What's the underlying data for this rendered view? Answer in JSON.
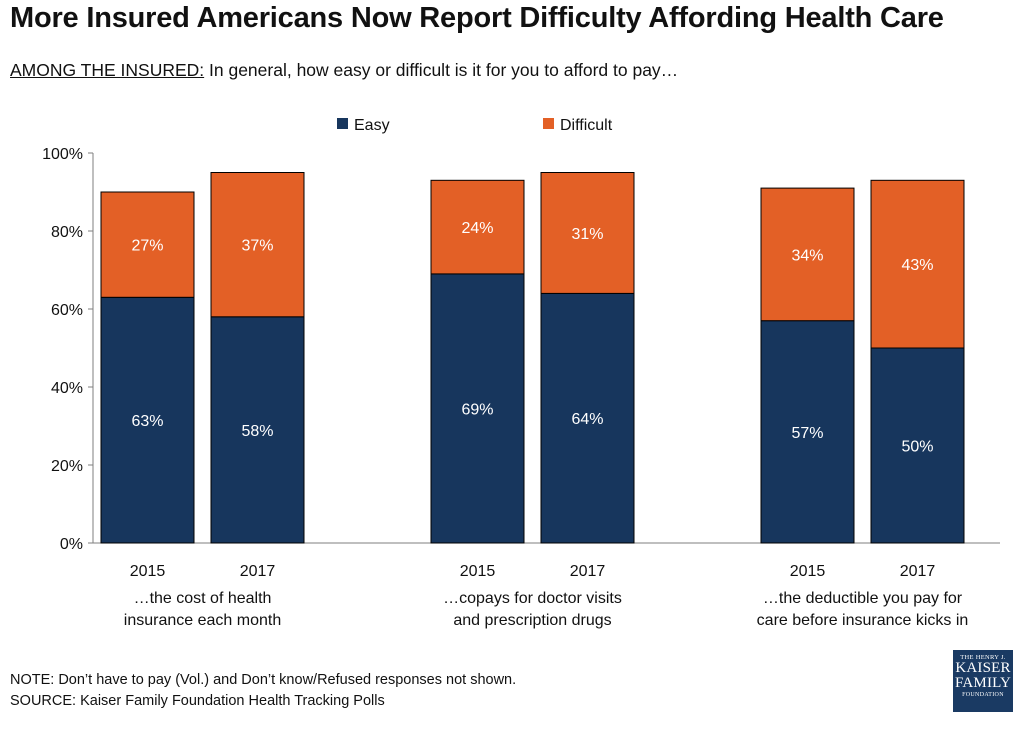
{
  "title": "More Insured Americans Now Report Difficulty Affording Health Care",
  "subtitle": {
    "lead": "AMONG THE INSURED:",
    "text": " In general, how easy or difficult is it for you to afford to pay…"
  },
  "note": "NOTE: Don’t have to pay (Vol.) and Don’t know/Refused  responses not shown.",
  "source": "SOURCE: Kaiser Family Foundation  Health Tracking Polls",
  "logo": {
    "line1": "THE HENRY J.",
    "line2": "KAISER",
    "line3": "FAMILY",
    "line4": "FOUNDATION"
  },
  "colors": {
    "easy": "#17365d",
    "difficult": "#e36026",
    "axis": "#7f7f7f"
  },
  "chart_data": {
    "type": "bar",
    "stacked": true,
    "title": "",
    "xlabel": "",
    "ylabel": "",
    "ylim": [
      0,
      100
    ],
    "yticks": [
      "0%",
      "20%",
      "40%",
      "60%",
      "80%",
      "100%"
    ],
    "legend_position": "top",
    "groups": [
      {
        "label_lines": [
          "…the cost of health",
          "insurance each month"
        ],
        "categories": [
          "2015",
          "2017"
        ]
      },
      {
        "label_lines": [
          "…copays for doctor visits",
          "and prescription drugs"
        ],
        "categories": [
          "2015",
          "2017"
        ]
      },
      {
        "label_lines": [
          "…the deductible you pay for",
          "care before insurance kicks in"
        ],
        "categories": [
          "2015",
          "2017"
        ]
      }
    ],
    "series": [
      {
        "name": "Easy",
        "values": [
          [
            63,
            58
          ],
          [
            69,
            64
          ],
          [
            57,
            50
          ]
        ],
        "labels": [
          [
            "63%",
            "58%"
          ],
          [
            "69%",
            "64%"
          ],
          [
            "57%",
            "50%"
          ]
        ]
      },
      {
        "name": "Difficult",
        "values": [
          [
            27,
            37
          ],
          [
            24,
            31
          ],
          [
            34,
            43
          ]
        ],
        "labels": [
          [
            "27%",
            "37%"
          ],
          [
            "24%",
            "31%"
          ],
          [
            "34%",
            "43%"
          ]
        ]
      }
    ]
  }
}
